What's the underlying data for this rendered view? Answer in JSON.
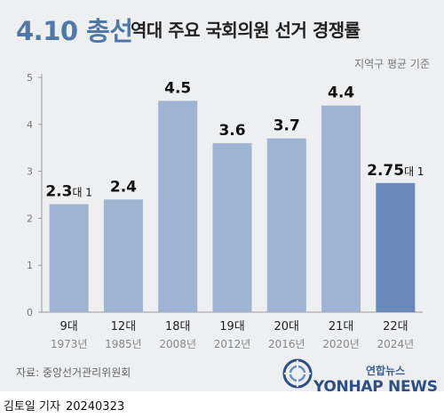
{
  "header": {
    "title_strong": "4.10 총선",
    "title_rest": "역대 주요 국회의원 선거 경쟁률",
    "note": "지역구 평균 기준"
  },
  "chart_data": {
    "type": "bar",
    "categories": [
      "9대",
      "12대",
      "18대",
      "19대",
      "20대",
      "21대",
      "22대"
    ],
    "years": [
      "1973년",
      "1985년",
      "2008년",
      "2012년",
      "2016년",
      "2020년",
      "2024년"
    ],
    "values": [
      2.3,
      2.4,
      4.5,
      3.6,
      3.7,
      4.4,
      2.75
    ],
    "value_labels": [
      "2.3",
      "2.4",
      "4.5",
      "3.6",
      "3.7",
      "4.4",
      "2.75"
    ],
    "label_suffix": "대 1",
    "ylim": [
      0,
      5
    ],
    "yticks": [
      "0",
      "1",
      "2",
      "3",
      "4",
      "5"
    ],
    "grid": false,
    "colors": {
      "bar": "#9fb3d2",
      "highlight": "#6889ba"
    },
    "highlight_index": 6,
    "suffix_indices": [
      0,
      6
    ]
  },
  "source": "자료: 중앙선거관리위원회",
  "logo": {
    "small": "연합뉴스",
    "big": "YONHAP NEWS"
  },
  "footer": {
    "author": "김토일 기자",
    "date": "20240323"
  }
}
